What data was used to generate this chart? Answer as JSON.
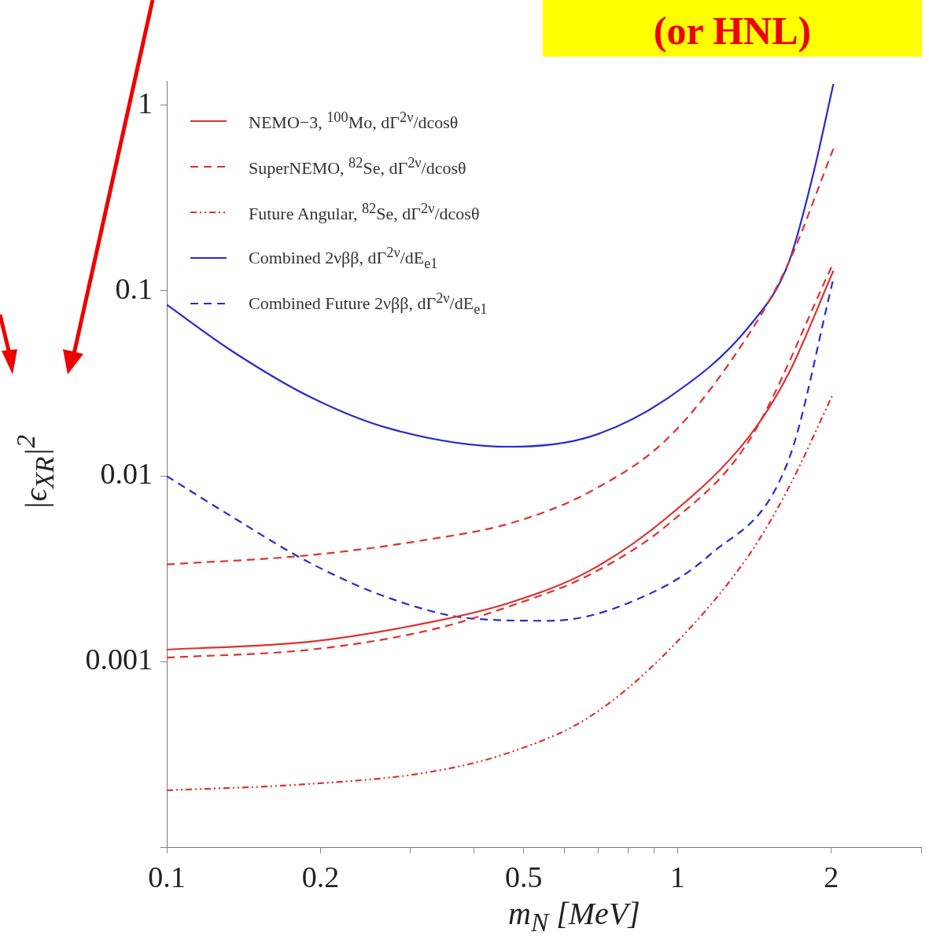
{
  "chart_data": {
    "type": "line",
    "xlabel": "m$_{N}$  [MeV]",
    "ylabel": "|ϵ$_{XR}$|$^{2}$",
    "annotations": [
      "(or HNL)"
    ],
    "log": "xy",
    "legend": "top left",
    "xlim": [
      0.1,
      3
    ],
    "ylim": [
      0.0001,
      1.35
    ],
    "xticks": [
      0.1,
      0.2,
      {
        "value": 0.3,
        "label": null
      },
      {
        "value": 0.4,
        "label": null
      },
      0.5,
      {
        "value": 0.6,
        "label": null
      },
      {
        "value": 0.7,
        "label": null
      },
      {
        "value": 0.8,
        "label": null
      },
      {
        "value": 0.9,
        "label": null
      },
      1,
      2,
      {
        "value": 3,
        "label": null
      }
    ],
    "yticks": [
      {
        "value": 0.0001,
        "label": null
      },
      0.001,
      0.01,
      0.1,
      1
    ],
    "series": [
      {
        "name": "NEMO−3, $^{100}$Mo, dΓ$^{2ν}$/dcosθ",
        "color": "#e03030",
        "line_style": "solid",
        "x": [
          0.1,
          0.191,
          0.328,
          0.47,
          0.673,
          0.964,
          1.38,
          1.65,
          2.02
        ],
        "values": [
          0.00116,
          0.00128,
          0.00163,
          0.00208,
          0.00309,
          0.00613,
          0.0163,
          0.0357,
          0.128
        ]
      },
      {
        "name": "SuperNEMO, $^{82}$Se, dΓ$^{2ν}$/dcosθ",
        "color": "#e03030",
        "line_style": "dashed",
        "x": [
          0.1,
          0.191,
          0.328,
          0.47,
          0.673,
          0.964,
          1.38,
          1.65,
          2.02
        ],
        "values": [
          0.00334,
          0.00375,
          0.00457,
          0.00556,
          0.00822,
          0.0163,
          0.0583,
          0.141,
          0.583
        ]
      },
      {
        "color": "#e03030",
        "line_style": "dashed",
        "x": [
          0.1,
          0.191,
          0.328,
          0.47,
          0.673,
          0.964,
          1.38,
          2.02
        ],
        "values": [
          0.00105,
          0.00116,
          0.00148,
          0.00199,
          0.00294,
          0.00556,
          0.0155,
          0.141
        ]
      },
      {
        "name": "Future Angular, $^{82}$Se, dΓ$^{2ν}$/dcosθ",
        "color": "#e03030",
        "line_style": "dotted",
        "x": [
          0.1,
          0.191,
          0.328,
          0.47,
          0.673,
          0.964,
          1.38,
          1.65,
          2.02
        ],
        "values": [
          0.000202,
          0.000219,
          0.000254,
          0.000324,
          0.000504,
          0.00116,
          0.00375,
          0.00863,
          0.028
        ]
      },
      {
        "name": "Combined 2νββ, dΓ$^{2ν}$/dE$_{e1}$",
        "color": "#2a2ad0",
        "line_style": "solid",
        "x": [
          0.1,
          0.133,
          0.191,
          0.274,
          0.47,
          0.673,
          0.964,
          1.38,
          1.65,
          1.84,
          2.02
        ],
        "values": [
          0.084,
          0.048,
          0.0267,
          0.018,
          0.0144,
          0.0163,
          0.0267,
          0.064,
          0.141,
          0.414,
          1.3
        ]
      },
      {
        "name": "Combined Future 2νββ, dΓ$^{2ν}$/dE$_{e1}$",
        "color": "#2a2ad0",
        "line_style": "dashed",
        "x": [
          0.1,
          0.133,
          0.191,
          0.274,
          0.393,
          0.562,
          0.805,
          1.155,
          1.65,
          2.02
        ],
        "values": [
          0.01,
          0.00613,
          0.0034,
          0.00219,
          0.00171,
          0.00166,
          0.00208,
          0.00375,
          0.0122,
          0.116
        ]
      }
    ]
  }
}
